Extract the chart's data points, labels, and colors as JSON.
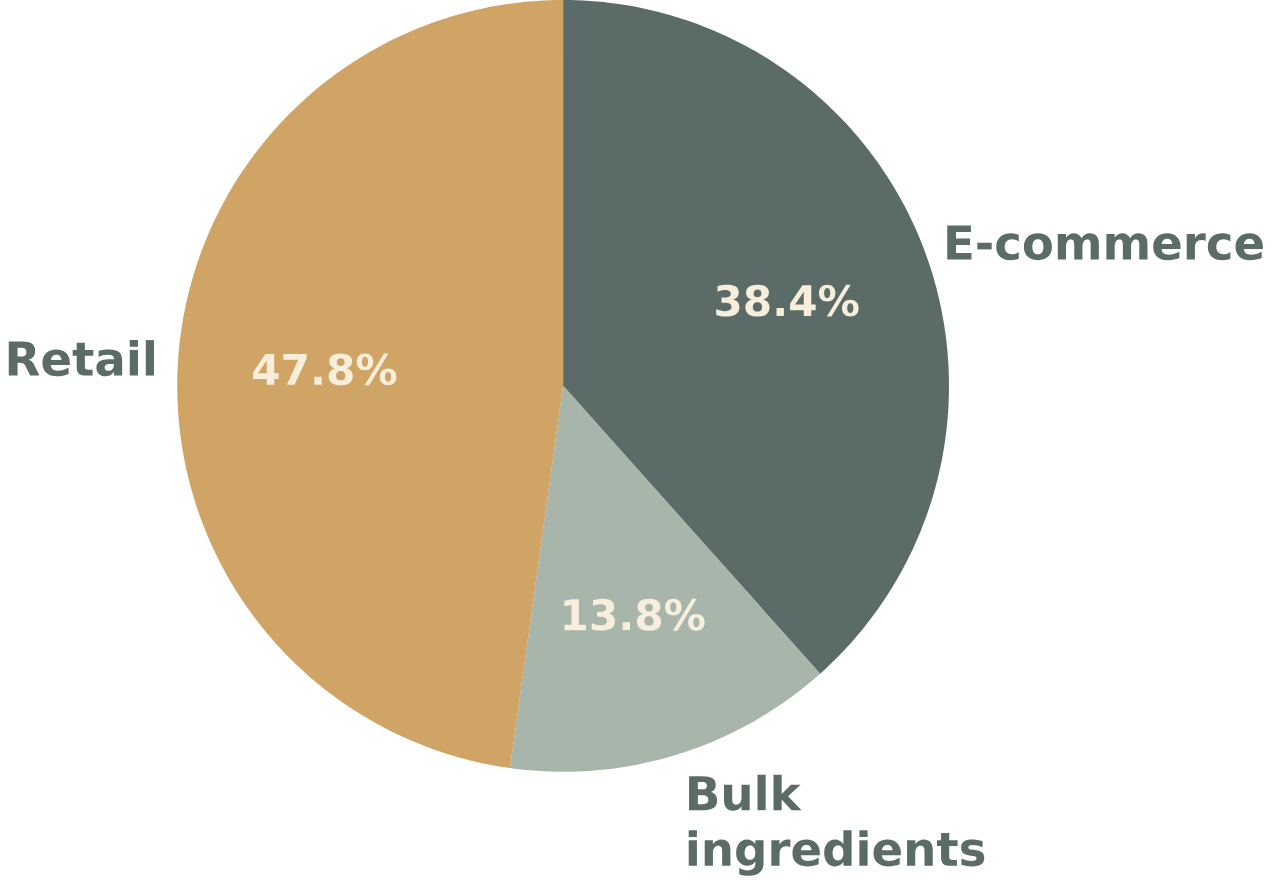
{
  "chart_data": {
    "type": "pie",
    "categories": [
      "E-commerce",
      "Bulk ingredients",
      "Retail"
    ],
    "values": [
      38.4,
      13.8,
      47.8
    ],
    "colors": [
      "#5a6b68",
      "#a7b5aa",
      "#cfa465"
    ],
    "value_labels": [
      "38.4%",
      "13.8%",
      "47.8%"
    ]
  }
}
